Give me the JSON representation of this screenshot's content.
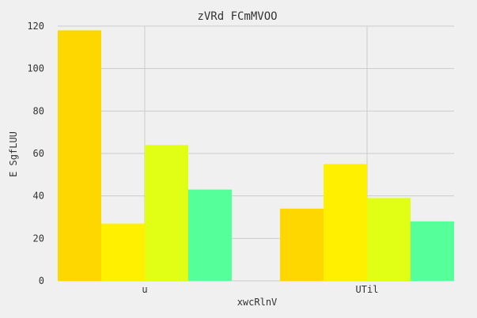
{
  "chart_data": {
    "type": "bar",
    "title": "zVRd FCmMVOO",
    "xlabel": "xwcRlnV",
    "ylabel": "E SgfLUU",
    "categories": [
      "u",
      "UTil"
    ],
    "series": [
      {
        "values": [
          118,
          34
        ],
        "color": "#ffd700"
      },
      {
        "values": [
          27,
          55
        ],
        "color": "#fff000"
      },
      {
        "values": [
          64,
          39
        ],
        "color": "#e1ff14"
      },
      {
        "values": [
          43,
          28
        ],
        "color": "#55ff99"
      }
    ],
    "ylim": [
      0,
      120
    ],
    "yticks": [
      0,
      20,
      40,
      60,
      80,
      100,
      120
    ],
    "grid": true
  }
}
